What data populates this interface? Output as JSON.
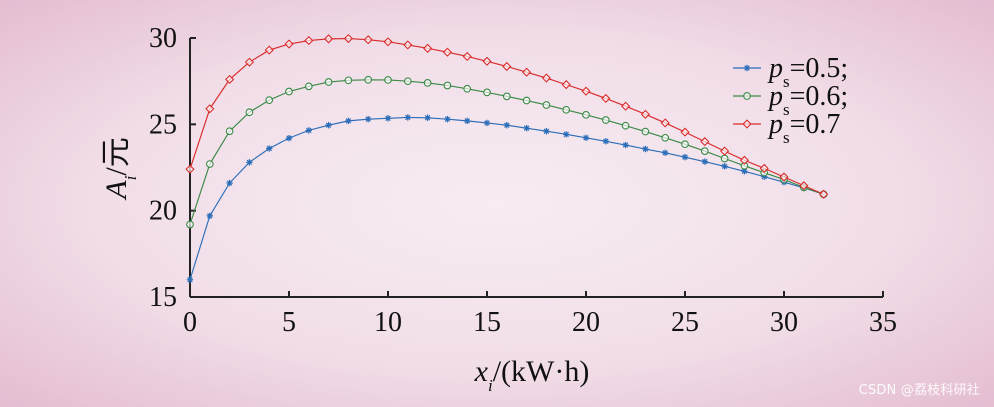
{
  "chart_data": {
    "type": "line",
    "xlabel": {
      "main": "x",
      "sub": "i",
      "unit": "/(kW·h)"
    },
    "ylabel": {
      "main": "A",
      "sub": "i",
      "unit": "/元"
    },
    "xlim": [
      0,
      35
    ],
    "ylim": [
      15,
      30
    ],
    "xticks": [
      0,
      5,
      10,
      15,
      20,
      25,
      30,
      35
    ],
    "yticks": [
      15,
      20,
      25,
      30
    ],
    "legend": "top-right",
    "x": [
      0,
      1,
      2,
      3,
      4,
      5,
      6,
      7,
      8,
      9,
      10,
      11,
      12,
      13,
      14,
      15,
      16,
      17,
      18,
      19,
      20,
      21,
      22,
      23,
      24,
      25,
      26,
      27,
      28,
      29,
      30,
      31,
      32
    ],
    "series": [
      {
        "name": "p_s=0.5;",
        "legend_main": "p",
        "legend_sub": "s",
        "legend_tail": "=0.5;",
        "color": "#2b6db8",
        "marker": "asterisk",
        "values": [
          16.0,
          19.7,
          21.6,
          22.8,
          23.6,
          24.2,
          24.65,
          24.95,
          25.2,
          25.3,
          25.35,
          25.4,
          25.38,
          25.3,
          25.2,
          25.08,
          24.95,
          24.78,
          24.6,
          24.42,
          24.22,
          24.02,
          23.8,
          23.57,
          23.35,
          23.1,
          22.84,
          22.57,
          22.28,
          21.97,
          21.65,
          21.32,
          20.95
        ]
      },
      {
        "name": "p_s=0.6;",
        "legend_main": "p",
        "legend_sub": "s",
        "legend_tail": "=0.6;",
        "color": "#3a8a46",
        "marker": "circle",
        "values": [
          19.2,
          22.7,
          24.6,
          25.7,
          26.4,
          26.9,
          27.2,
          27.45,
          27.55,
          27.58,
          27.57,
          27.5,
          27.4,
          27.25,
          27.06,
          26.85,
          26.62,
          26.38,
          26.12,
          25.84,
          25.55,
          25.25,
          24.92,
          24.58,
          24.22,
          23.85,
          23.45,
          23.02,
          22.6,
          22.2,
          21.8,
          21.35,
          20.95
        ]
      },
      {
        "name": "p_s=0.7",
        "legend_main": "p",
        "legend_sub": "s",
        "legend_tail": "=0.7",
        "color": "#d92a2a",
        "marker": "diamond",
        "values": [
          22.4,
          25.9,
          27.6,
          28.6,
          29.3,
          29.65,
          29.85,
          29.95,
          29.97,
          29.9,
          29.78,
          29.6,
          29.4,
          29.18,
          28.93,
          28.65,
          28.35,
          28.02,
          27.68,
          27.3,
          26.92,
          26.5,
          26.05,
          25.58,
          25.08,
          24.55,
          24.0,
          23.45,
          22.92,
          22.45,
          21.95,
          21.45,
          20.95
        ]
      }
    ]
  },
  "watermark": "CSDN @荔枝科研社",
  "colors": {
    "background_center": "#f7edf3",
    "background_edge": "#e4bdd1",
    "axis": "#222222"
  }
}
